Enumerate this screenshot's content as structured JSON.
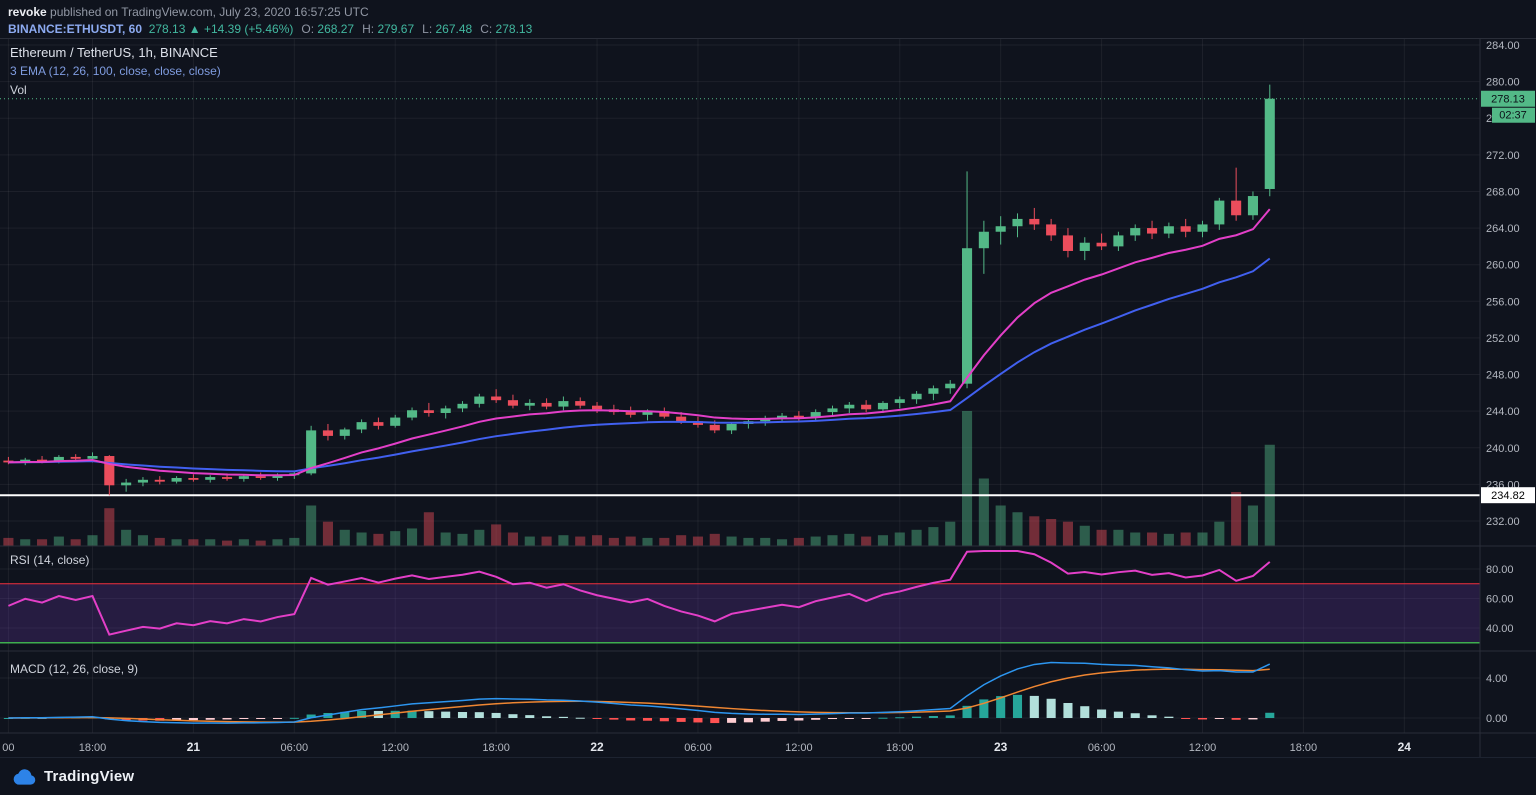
{
  "header": {
    "author": "revoke",
    "published": " published on TradingView.com, July 23, 2020 16:57:25 UTC",
    "symbol": "BINANCE:ETHUSDT, 60",
    "price": "278.13",
    "arrow": "▲",
    "change": "+14.39 (+5.46%)",
    "ohlc": [
      {
        "label": "O:",
        "value": "268.27"
      },
      {
        "label": "H:",
        "value": "279.67"
      },
      {
        "label": "L:",
        "value": "267.48"
      },
      {
        "label": "C:",
        "value": "278.13"
      }
    ]
  },
  "legend": {
    "main_title": "Ethereum / TetherUS, 1h, BINANCE",
    "ema_label": "3 EMA (12, 26, 100, close, close, close)",
    "vol_label": "Vol",
    "rsi_label": "RSI (14, close)",
    "macd_label": "MACD (12, 26, close, 9)"
  },
  "footer": {
    "brand": "TradingView"
  },
  "axis": {
    "price_ticks": [
      284,
      280,
      276,
      272,
      268,
      264,
      260,
      256,
      252,
      248,
      244,
      240,
      236,
      232
    ],
    "rsi_ticks": [
      80,
      60,
      40
    ],
    "macd_ticks": [
      4,
      0
    ],
    "last_price_badge": "278.13",
    "countdown_badge": "02:37",
    "hline_badge": "234.82"
  },
  "chart_data": {
    "type": "candlestick",
    "symbol": "BINANCE:ETHUSDT",
    "interval_minutes": 60,
    "price_ylim": [
      229.3,
      284.7
    ],
    "rsi_ylim": [
      25,
      95
    ],
    "macd_ylim": [
      -2,
      6.4
    ],
    "slots": 88,
    "levels": {
      "white_line": 234.82,
      "last_price": 278.13,
      "rsi_upper": 70,
      "rsi_lower": 30
    },
    "indicators": {
      "ema_fast": 12,
      "ema_slow": 26,
      "ema_third": 100,
      "rsi_period": 14,
      "macd_signal": 9
    },
    "time_labels": [
      {
        "index": 0,
        "text": "00",
        "major": false
      },
      {
        "index": 5,
        "text": "18:00",
        "major": false
      },
      {
        "index": 11,
        "text": "21",
        "major": true
      },
      {
        "index": 17,
        "text": "06:00",
        "major": false
      },
      {
        "index": 23,
        "text": "12:00",
        "major": false
      },
      {
        "index": 29,
        "text": "18:00",
        "major": false
      },
      {
        "index": 35,
        "text": "22",
        "major": true
      },
      {
        "index": 41,
        "text": "06:00",
        "major": false
      },
      {
        "index": 47,
        "text": "12:00",
        "major": false
      },
      {
        "index": 53,
        "text": "18:00",
        "major": false
      },
      {
        "index": 59,
        "text": "23",
        "major": true
      },
      {
        "index": 65,
        "text": "06:00",
        "major": false
      },
      {
        "index": 71,
        "text": "12:00",
        "major": false
      },
      {
        "index": 77,
        "text": "18:00",
        "major": false
      },
      {
        "index": 83,
        "text": "24",
        "major": true
      }
    ],
    "candles": [
      [
        238.6,
        239.0,
        238.2,
        238.4,
        0.06
      ],
      [
        238.4,
        238.9,
        238.1,
        238.7,
        0.05
      ],
      [
        238.7,
        239.1,
        238.3,
        238.5,
        0.05
      ],
      [
        238.5,
        239.2,
        238.3,
        239.0,
        0.07
      ],
      [
        239.0,
        239.3,
        238.5,
        238.8,
        0.05
      ],
      [
        238.8,
        239.5,
        238.4,
        239.1,
        0.08
      ],
      [
        239.1,
        239.2,
        234.8,
        235.9,
        0.28
      ],
      [
        235.9,
        236.6,
        235.2,
        236.2,
        0.12
      ],
      [
        236.2,
        236.8,
        235.8,
        236.5,
        0.08
      ],
      [
        236.5,
        236.9,
        236.0,
        236.3,
        0.06
      ],
      [
        236.3,
        236.9,
        236.1,
        236.7,
        0.05
      ],
      [
        236.7,
        237.1,
        236.3,
        236.5,
        0.05
      ],
      [
        236.5,
        237.0,
        236.2,
        236.8,
        0.05
      ],
      [
        236.8,
        237.2,
        236.4,
        236.6,
        0.04
      ],
      [
        236.6,
        237.1,
        236.3,
        236.9,
        0.05
      ],
      [
        236.9,
        237.3,
        236.5,
        236.7,
        0.04
      ],
      [
        236.7,
        237.2,
        236.4,
        237.0,
        0.05
      ],
      [
        237.0,
        237.4,
        236.6,
        237.2,
        0.06
      ],
      [
        237.2,
        242.4,
        237.0,
        241.9,
        0.3
      ],
      [
        241.9,
        242.6,
        240.8,
        241.3,
        0.18
      ],
      [
        241.3,
        242.2,
        240.9,
        242.0,
        0.12
      ],
      [
        242.0,
        243.1,
        241.6,
        242.8,
        0.1
      ],
      [
        242.8,
        243.3,
        242.0,
        242.4,
        0.09
      ],
      [
        242.4,
        243.6,
        242.2,
        243.3,
        0.11
      ],
      [
        243.3,
        244.4,
        243.0,
        244.1,
        0.13
      ],
      [
        244.1,
        244.9,
        243.4,
        243.8,
        0.25
      ],
      [
        243.8,
        244.6,
        243.2,
        244.3,
        0.1
      ],
      [
        244.3,
        245.1,
        243.9,
        244.8,
        0.09
      ],
      [
        244.8,
        245.9,
        244.4,
        245.6,
        0.12
      ],
      [
        245.6,
        246.4,
        244.9,
        245.2,
        0.16
      ],
      [
        245.2,
        245.8,
        244.3,
        244.6,
        0.1
      ],
      [
        244.6,
        245.3,
        244.1,
        244.9,
        0.07
      ],
      [
        244.9,
        245.4,
        244.2,
        244.5,
        0.07
      ],
      [
        244.5,
        245.6,
        244.1,
        245.1,
        0.08
      ],
      [
        245.1,
        245.5,
        244.3,
        244.6,
        0.07
      ],
      [
        244.6,
        245.0,
        243.8,
        244.2,
        0.08
      ],
      [
        244.2,
        244.7,
        243.6,
        243.9,
        0.06
      ],
      [
        243.9,
        244.5,
        243.3,
        243.6,
        0.07
      ],
      [
        243.6,
        244.2,
        243.0,
        244.0,
        0.06
      ],
      [
        244.0,
        244.4,
        243.2,
        243.4,
        0.06
      ],
      [
        243.4,
        243.9,
        242.6,
        242.9,
        0.08
      ],
      [
        242.9,
        243.4,
        242.2,
        242.5,
        0.07
      ],
      [
        242.5,
        243.0,
        241.6,
        241.9,
        0.09
      ],
      [
        241.9,
        242.8,
        241.5,
        242.6,
        0.07
      ],
      [
        242.6,
        243.2,
        242.1,
        242.9,
        0.06
      ],
      [
        242.9,
        243.5,
        242.4,
        243.2,
        0.06
      ],
      [
        243.2,
        243.8,
        242.8,
        243.5,
        0.05
      ],
      [
        243.5,
        244.0,
        242.9,
        243.3,
        0.06
      ],
      [
        243.3,
        244.2,
        243.0,
        243.9,
        0.07
      ],
      [
        243.9,
        244.6,
        243.4,
        244.3,
        0.08
      ],
      [
        244.3,
        245.0,
        243.8,
        244.7,
        0.09
      ],
      [
        244.7,
        245.2,
        243.9,
        244.2,
        0.07
      ],
      [
        244.2,
        245.1,
        243.8,
        244.9,
        0.08
      ],
      [
        244.9,
        245.6,
        244.3,
        245.3,
        0.1
      ],
      [
        245.3,
        246.2,
        244.8,
        245.9,
        0.12
      ],
      [
        245.9,
        246.8,
        245.2,
        246.5,
        0.14
      ],
      [
        246.5,
        247.4,
        245.9,
        247.0,
        0.18
      ],
      [
        247.0,
        270.2,
        246.5,
        261.8,
        1.0
      ],
      [
        261.8,
        264.8,
        259.0,
        263.6,
        0.5
      ],
      [
        263.6,
        265.3,
        262.2,
        264.2,
        0.3
      ],
      [
        264.2,
        265.6,
        263.0,
        265.0,
        0.25
      ],
      [
        265.0,
        266.2,
        263.8,
        264.4,
        0.22
      ],
      [
        264.4,
        265.0,
        262.6,
        263.2,
        0.2
      ],
      [
        263.2,
        264.0,
        260.8,
        261.5,
        0.18
      ],
      [
        261.5,
        263.0,
        260.5,
        262.4,
        0.15
      ],
      [
        262.4,
        263.4,
        261.6,
        262.0,
        0.12
      ],
      [
        262.0,
        263.6,
        261.5,
        263.2,
        0.12
      ],
      [
        263.2,
        264.4,
        262.6,
        264.0,
        0.1
      ],
      [
        264.0,
        264.8,
        262.8,
        263.4,
        0.1
      ],
      [
        263.4,
        264.6,
        262.9,
        264.2,
        0.09
      ],
      [
        264.2,
        265.0,
        263.0,
        263.6,
        0.1
      ],
      [
        263.6,
        264.8,
        263.0,
        264.4,
        0.1
      ],
      [
        264.4,
        267.3,
        263.8,
        267.0,
        0.18
      ],
      [
        267.0,
        270.6,
        264.8,
        265.4,
        0.4
      ],
      [
        265.4,
        268.0,
        264.9,
        267.5,
        0.3
      ],
      [
        268.27,
        279.67,
        267.48,
        278.13,
        0.75
      ]
    ],
    "colors": {
      "up": "#53b987",
      "down": "#eb4d5c",
      "vol_up": "rgba(83,185,135,0.45)",
      "vol_down": "rgba(235,77,92,0.45)",
      "ema_fast": "#e33fc8",
      "ema_slow": "#4160f0",
      "rsi": "#e33fc8",
      "rsi_upper_color": "#f2303f",
      "rsi_lower_color": "#3fae4f",
      "rsi_band": "rgba(106,57,175,0.25)",
      "macd_line": "#2d96f0",
      "macd_signal": "#ef8632",
      "hist_up_grow": "#26a69a",
      "hist_up_fall": "#b2dfdb",
      "hist_dn_fall": "#ff5252",
      "hist_dn_grow": "#ffcdd2",
      "badge_green": "#53b987",
      "white_line_color": "#ffffff",
      "grid": "rgba(255,255,255,0.06)",
      "sep": "#2a2e39",
      "text": "#b4b8c1",
      "text_bright": "#e3e6ec"
    }
  }
}
